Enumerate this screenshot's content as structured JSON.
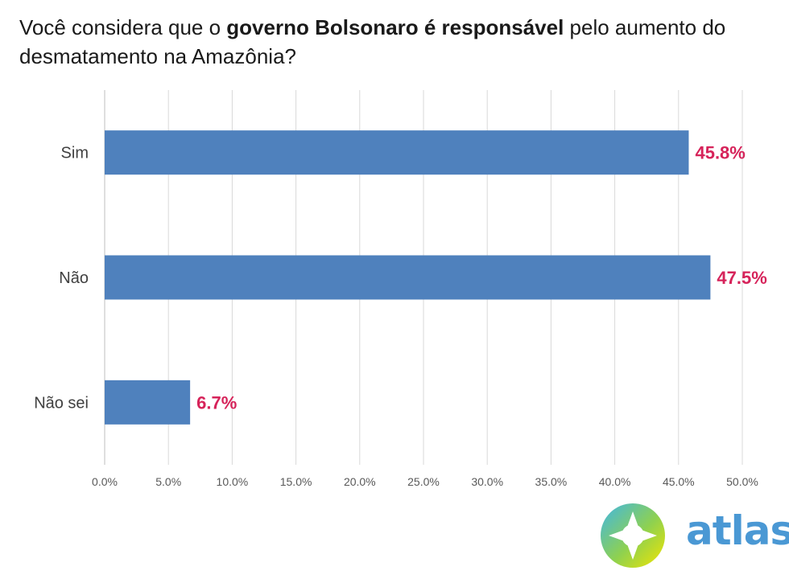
{
  "title": {
    "before": "Você considera que o ",
    "bold": "governo Bolsonaro é responsável",
    "after": " pelo aumento do desmatamento na Amazônia?"
  },
  "chart_data": {
    "type": "bar",
    "orientation": "horizontal",
    "categories": [
      "Sim",
      "Não",
      "Não sei"
    ],
    "values": [
      45.8,
      47.5,
      6.7
    ],
    "value_labels": [
      "45.8%",
      "47.5%",
      "6.7%"
    ],
    "xlim": [
      0,
      50
    ],
    "xticks": [
      0,
      5,
      10,
      15,
      20,
      25,
      30,
      35,
      40,
      45,
      50
    ],
    "xtick_labels": [
      "0.0%",
      "5.0%",
      "10.0%",
      "15.0%",
      "20.0%",
      "25.0%",
      "30.0%",
      "35.0%",
      "40.0%",
      "45.0%",
      "50.0%"
    ],
    "grid": true,
    "bar_color": "#4f81bd",
    "label_color": "#d6235a",
    "xlabel": "",
    "ylabel": ""
  },
  "logo": {
    "word": "atlas"
  }
}
